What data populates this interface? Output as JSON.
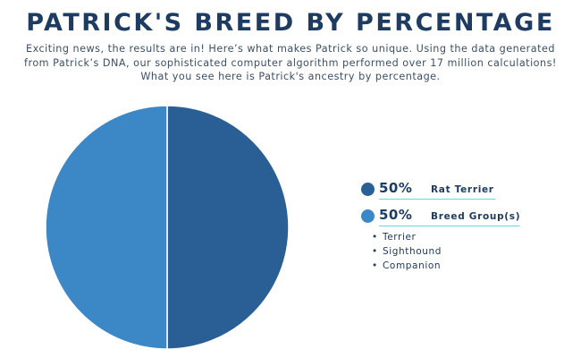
{
  "title": "PATRICK'S BREED BY PERCENTAGE",
  "intro": "Exciting news, the results are in! Here’s what makes Patrick so unique. Using the data generated from Patrick’s DNA, our sophisticated computer algorithm performed over 17 million calculations! What you see here is Patrick's ancestry by percentage.",
  "chart_data": {
    "type": "pie",
    "title": "PATRICK'S BREED BY PERCENTAGE",
    "slices": [
      {
        "label": "Rat Terrier",
        "value": 50,
        "display": "50%",
        "color": "#2a5f96"
      },
      {
        "label": "Breed Group(s)",
        "value": 50,
        "display": "50%",
        "color": "#3c88c7"
      }
    ],
    "breed_groups": [
      "Terrier",
      "Sighthound",
      "Companion"
    ],
    "legend_position": "right"
  },
  "legend": {
    "items": [
      {
        "pct": "50%",
        "label": "Rat Terrier"
      },
      {
        "pct": "50%",
        "label": "Breed Group(s)"
      }
    ],
    "group_bullet": "•",
    "groups": [
      "Terrier",
      "Sighthound",
      "Companion"
    ]
  }
}
